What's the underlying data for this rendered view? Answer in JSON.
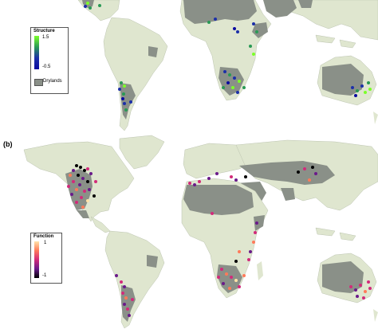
{
  "panel_b_label": "(b)",
  "colors": {
    "ocean": "#ffffff",
    "land": "#dfe6cf",
    "drylands": "#8a9088",
    "border": "#bcc4b0"
  },
  "legend_structure": {
    "title": "Structure",
    "max_label": "1.5",
    "min_label": "-0.5",
    "drylands_label": "Drylands",
    "gradient": [
      "#7cff2a",
      "#2a9a55",
      "#1c2fa8",
      "#0a0aa0"
    ]
  },
  "legend_function": {
    "title": "Function",
    "max_label": "1",
    "min_label": "-1",
    "gradient": [
      "#ffe3a8",
      "#ff7a5a",
      "#d22a7a",
      "#6a1a8a",
      "#000000"
    ]
  }
}
